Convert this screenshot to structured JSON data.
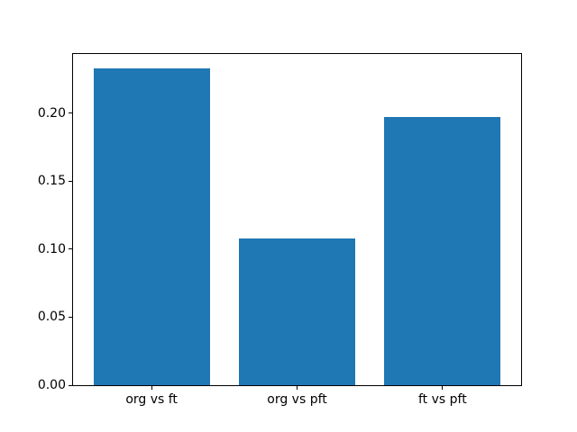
{
  "chart_data": {
    "type": "bar",
    "title": "",
    "xlabel": "",
    "ylabel": "",
    "categories": [
      "org vs ft",
      "org vs pft",
      "ft vs pft"
    ],
    "values": [
      0.233,
      0.108,
      0.197
    ],
    "bar_positions": [
      0,
      1,
      2
    ],
    "bar_width": 0.8,
    "xlim": [
      -0.54,
      2.54
    ],
    "ylim": [
      0,
      0.2434
    ],
    "yticks": [
      {
        "value": 0.0,
        "label": "0.00"
      },
      {
        "value": 0.05,
        "label": "0.05"
      },
      {
        "value": 0.1,
        "label": "0.10"
      },
      {
        "value": 0.15,
        "label": "0.15"
      },
      {
        "value": 0.2,
        "label": "0.20"
      }
    ],
    "bar_color": "#1f77b4",
    "background_color": "#ffffff",
    "spine_color": "#000000",
    "tick_label_color": "#000000",
    "grid": false,
    "legend": null
  }
}
